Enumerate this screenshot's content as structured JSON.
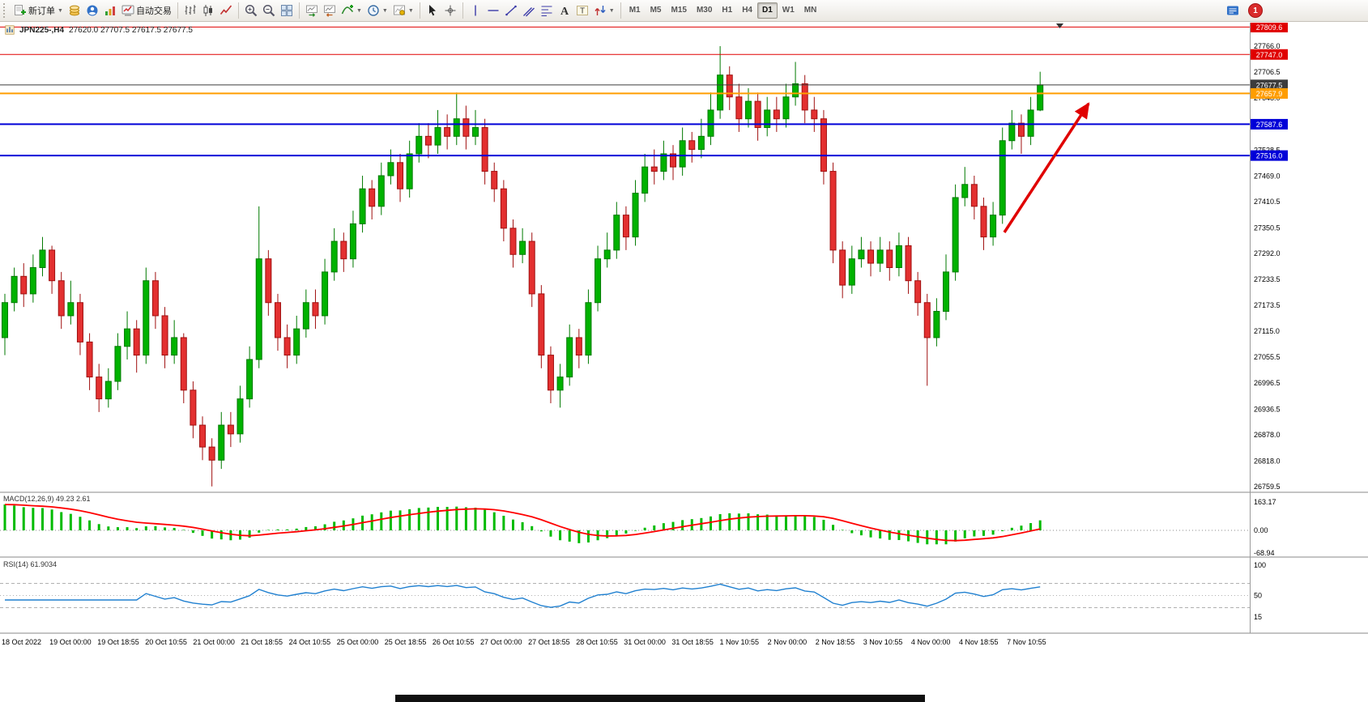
{
  "toolbar": {
    "new_order_label": "新订单",
    "auto_trading_label": "自动交易",
    "buttons": [
      {
        "name": "new-order",
        "icon": "new-order",
        "label": "新订单",
        "dropdown": true
      },
      {
        "name": "deposit",
        "icon": "coins"
      },
      {
        "name": "community",
        "icon": "community"
      },
      {
        "name": "signals",
        "icon": "signals"
      },
      {
        "name": "auto-trading",
        "icon": "auto-trading",
        "label": "自动交易"
      },
      {
        "sep": true
      },
      {
        "name": "bar-chart",
        "icon": "bar-chart"
      },
      {
        "name": "candlestick-chart",
        "icon": "candlestick"
      },
      {
        "name": "line-chart",
        "icon": "line-chart"
      },
      {
        "sep": true
      },
      {
        "name": "zoom-in",
        "icon": "zoom-in"
      },
      {
        "name": "zoom-out",
        "icon": "zoom-out"
      },
      {
        "name": "tile-windows",
        "icon": "tile"
      },
      {
        "sep": true
      },
      {
        "name": "auto-scroll",
        "icon": "auto-scroll"
      },
      {
        "name": "chart-shift",
        "icon": "chart-shift"
      },
      {
        "name": "indicators",
        "icon": "indicators",
        "dropdown": true
      },
      {
        "name": "periods",
        "icon": "clock",
        "dropdown": true
      },
      {
        "name": "templates",
        "icon": "template",
        "dropdown": true
      },
      {
        "sep": true
      },
      {
        "name": "cursor",
        "icon": "cursor"
      },
      {
        "name": "crosshair",
        "icon": "crosshair"
      },
      {
        "sep": true
      },
      {
        "name": "vertical-line",
        "icon": "vline"
      },
      {
        "name": "horizontal-line",
        "icon": "hline"
      },
      {
        "name": "trendline",
        "icon": "trendline"
      },
      {
        "name": "equidistant-channel",
        "icon": "channel"
      },
      {
        "name": "fibonacci",
        "icon": "fibo"
      },
      {
        "name": "text",
        "icon": "text-a"
      },
      {
        "name": "text-label",
        "icon": "text-t"
      },
      {
        "name": "arrow-tools",
        "icon": "arrows",
        "dropdown": true
      }
    ],
    "timeframes": [
      "M1",
      "M5",
      "M15",
      "M30",
      "H1",
      "H4",
      "D1",
      "W1",
      "MN"
    ],
    "active_timeframe": "D1",
    "notification_count": "1"
  },
  "chart_header": {
    "symbol": "JPN225-,H4",
    "ohlc": "27620.0 27707.5 27617.5 27677.5"
  },
  "chart_data": [
    {
      "type": "candlestick",
      "title": "JPN225-,H4",
      "open": 27620.0,
      "high": 27707.5,
      "low": 27617.5,
      "close": 27677.5,
      "ylim": [
        26742,
        27830
      ],
      "up_color": "#00b200",
      "down_color": "#e33030",
      "y_ticks": [
        "27766.0",
        "27706.5",
        "27648.0",
        "27587.5",
        "27528.5",
        "27469.0",
        "27410.5",
        "27350.5",
        "27292.0",
        "27233.5",
        "27173.5",
        "27115.0",
        "27055.5",
        "26996.5",
        "26936.5",
        "26878.0",
        "26818.0",
        "26759.5"
      ],
      "x_labels": [
        "18 Oct 2022",
        "19 Oct 00:00",
        "19 Oct 18:55",
        "20 Oct 10:55",
        "21 Oct 00:00",
        "21 Oct 18:55",
        "24 Oct 10:55",
        "25 Oct 00:00",
        "25 Oct 18:55",
        "26 Oct 10:55",
        "27 Oct 00:00",
        "27 Oct 18:55",
        "28 Oct 10:55",
        "31 Oct 00:00",
        "31 Oct 18:55",
        "1 Nov 10:55",
        "2 Nov 00:00",
        "2 Nov 18:55",
        "3 Nov 10:55",
        "4 Nov 00:00",
        "4 Nov 18:55",
        "7 Nov 10:55"
      ],
      "levels": [
        {
          "label": "27809.6",
          "price": 27809.6,
          "color": "#e00000",
          "width": 1
        },
        {
          "label": "27747.0",
          "price": 27747.0,
          "color": "#e00000",
          "width": 1
        },
        {
          "label": "27677.5",
          "price": 27677.5,
          "color": "#3c3c3c",
          "width": 1
        },
        {
          "label": "27657.9",
          "price": 27657.9,
          "color": "#ff9d00",
          "width": 2
        },
        {
          "label": "27587.6",
          "price": 27587.6,
          "color": "#0000d8",
          "width": 2
        },
        {
          "label": "27516.0",
          "price": 27516.0,
          "color": "#0000d8",
          "width": 2
        }
      ],
      "annotation_arrow": {
        "color": "#e00000"
      },
      "candles": [
        [
          27100,
          27200,
          27060,
          27180
        ],
        [
          27180,
          27260,
          27160,
          27240
        ],
        [
          27240,
          27270,
          27170,
          27200
        ],
        [
          27200,
          27290,
          27180,
          27260
        ],
        [
          27260,
          27330,
          27240,
          27300
        ],
        [
          27300,
          27310,
          27200,
          27230
        ],
        [
          27230,
          27250,
          27120,
          27150
        ],
        [
          27150,
          27230,
          27130,
          27180
        ],
        [
          27180,
          27200,
          27060,
          27090
        ],
        [
          27090,
          27110,
          26980,
          27010
        ],
        [
          27010,
          27040,
          26930,
          26960
        ],
        [
          26960,
          27030,
          26940,
          27000
        ],
        [
          27000,
          27110,
          26980,
          27080
        ],
        [
          27080,
          27160,
          27050,
          27120
        ],
        [
          27120,
          27140,
          27020,
          27060
        ],
        [
          27060,
          27260,
          27040,
          27230
        ],
        [
          27230,
          27250,
          27120,
          27150
        ],
        [
          27150,
          27170,
          27030,
          27060
        ],
        [
          27060,
          27140,
          27040,
          27100
        ],
        [
          27100,
          27110,
          26950,
          26980
        ],
        [
          26980,
          27000,
          26870,
          26900
        ],
        [
          26900,
          26920,
          26820,
          26850
        ],
        [
          26850,
          26870,
          26760,
          26820
        ],
        [
          26820,
          26930,
          26800,
          26900
        ],
        [
          26900,
          26930,
          26850,
          26880
        ],
        [
          26880,
          26990,
          26860,
          26960
        ],
        [
          26960,
          27080,
          26940,
          27050
        ],
        [
          27050,
          27400,
          27030,
          27280
        ],
        [
          27280,
          27300,
          27150,
          27180
        ],
        [
          27180,
          27200,
          27070,
          27100
        ],
        [
          27100,
          27130,
          27030,
          27060
        ],
        [
          27060,
          27150,
          27040,
          27120
        ],
        [
          27120,
          27210,
          27100,
          27180
        ],
        [
          27180,
          27210,
          27120,
          27150
        ],
        [
          27150,
          27280,
          27130,
          27250
        ],
        [
          27250,
          27350,
          27230,
          27320
        ],
        [
          27320,
          27340,
          27250,
          27280
        ],
        [
          27280,
          27390,
          27260,
          27360
        ],
        [
          27360,
          27470,
          27340,
          27440
        ],
        [
          27440,
          27460,
          27370,
          27400
        ],
        [
          27400,
          27500,
          27380,
          27470
        ],
        [
          27470,
          27530,
          27450,
          27500
        ],
        [
          27500,
          27520,
          27410,
          27440
        ],
        [
          27440,
          27550,
          27420,
          27520
        ],
        [
          27520,
          27590,
          27500,
          27560
        ],
        [
          27560,
          27590,
          27510,
          27540
        ],
        [
          27540,
          27620,
          27520,
          27580
        ],
        [
          27580,
          27610,
          27530,
          27560
        ],
        [
          27560,
          27660,
          27540,
          27600
        ],
        [
          27600,
          27630,
          27530,
          27560
        ],
        [
          27560,
          27620,
          27540,
          27580
        ],
        [
          27580,
          27600,
          27450,
          27480
        ],
        [
          27480,
          27500,
          27410,
          27440
        ],
        [
          27440,
          27460,
          27320,
          27350
        ],
        [
          27350,
          27370,
          27260,
          27290
        ],
        [
          27290,
          27350,
          27270,
          27320
        ],
        [
          27320,
          27340,
          27170,
          27200
        ],
        [
          27200,
          27220,
          27030,
          27060
        ],
        [
          27060,
          27080,
          26950,
          26980
        ],
        [
          26980,
          27040,
          26940,
          27010
        ],
        [
          27010,
          27130,
          26990,
          27100
        ],
        [
          27100,
          27120,
          27030,
          27060
        ],
        [
          27060,
          27210,
          27040,
          27180
        ],
        [
          27180,
          27310,
          27160,
          27280
        ],
        [
          27280,
          27340,
          27260,
          27300
        ],
        [
          27300,
          27410,
          27280,
          27380
        ],
        [
          27380,
          27400,
          27300,
          27330
        ],
        [
          27330,
          27460,
          27310,
          27430
        ],
        [
          27430,
          27520,
          27410,
          27490
        ],
        [
          27490,
          27530,
          27450,
          27480
        ],
        [
          27480,
          27550,
          27460,
          27520
        ],
        [
          27520,
          27540,
          27460,
          27490
        ],
        [
          27490,
          27580,
          27470,
          27550
        ],
        [
          27550,
          27570,
          27500,
          27530
        ],
        [
          27530,
          27600,
          27510,
          27560
        ],
        [
          27560,
          27660,
          27540,
          27620
        ],
        [
          27620,
          27766,
          27600,
          27700
        ],
        [
          27700,
          27720,
          27620,
          27650
        ],
        [
          27650,
          27680,
          27570,
          27600
        ],
        [
          27600,
          27670,
          27580,
          27640
        ],
        [
          27640,
          27660,
          27550,
          27580
        ],
        [
          27580,
          27650,
          27560,
          27620
        ],
        [
          27620,
          27650,
          27570,
          27600
        ],
        [
          27600,
          27680,
          27580,
          27650
        ],
        [
          27650,
          27730,
          27630,
          27680
        ],
        [
          27680,
          27700,
          27590,
          27620
        ],
        [
          27620,
          27650,
          27570,
          27600
        ],
        [
          27600,
          27620,
          27450,
          27480
        ],
        [
          27480,
          27500,
          27270,
          27300
        ],
        [
          27300,
          27320,
          27190,
          27220
        ],
        [
          27220,
          27310,
          27200,
          27280
        ],
        [
          27280,
          27330,
          27260,
          27300
        ],
        [
          27300,
          27320,
          27240,
          27270
        ],
        [
          27270,
          27330,
          27250,
          27300
        ],
        [
          27300,
          27320,
          27230,
          27260
        ],
        [
          27260,
          27340,
          27240,
          27310
        ],
        [
          27310,
          27330,
          27200,
          27230
        ],
        [
          27230,
          27250,
          27150,
          27180
        ],
        [
          27180,
          27200,
          26990,
          27100
        ],
        [
          27100,
          27190,
          27080,
          27160
        ],
        [
          27160,
          27290,
          27140,
          27250
        ],
        [
          27250,
          27450,
          27230,
          27420
        ],
        [
          27420,
          27490,
          27400,
          27450
        ],
        [
          27450,
          27470,
          27370,
          27400
        ],
        [
          27400,
          27420,
          27300,
          27330
        ],
        [
          27330,
          27410,
          27310,
          27380
        ],
        [
          27380,
          27580,
          27360,
          27550
        ],
        [
          27550,
          27620,
          27530,
          27590
        ],
        [
          27590,
          27610,
          27520,
          27560
        ],
        [
          27560,
          27650,
          27540,
          27620
        ],
        [
          27620,
          27707.5,
          27617.5,
          27677.5
        ]
      ]
    },
    {
      "type": "bar",
      "name": "MACD(12,26,9)",
      "label": "MACD(12,26,9) 49.23 2.61",
      "values": [
        49.23,
        2.61
      ],
      "params": [
        12,
        26,
        9
      ],
      "y_ticks": [
        "163.17",
        "0.00",
        "-68.94"
      ],
      "histogram_color": "#00bb00",
      "signal_color": "#ff0000"
    },
    {
      "type": "line",
      "name": "RSI(14)",
      "label": "RSI(14) 61.9034",
      "current_value": 61.9034,
      "period": 14,
      "y_ticks": [
        "100",
        "50",
        "15"
      ],
      "levels": [
        70,
        30
      ],
      "line_color": "#2080d0"
    }
  ]
}
